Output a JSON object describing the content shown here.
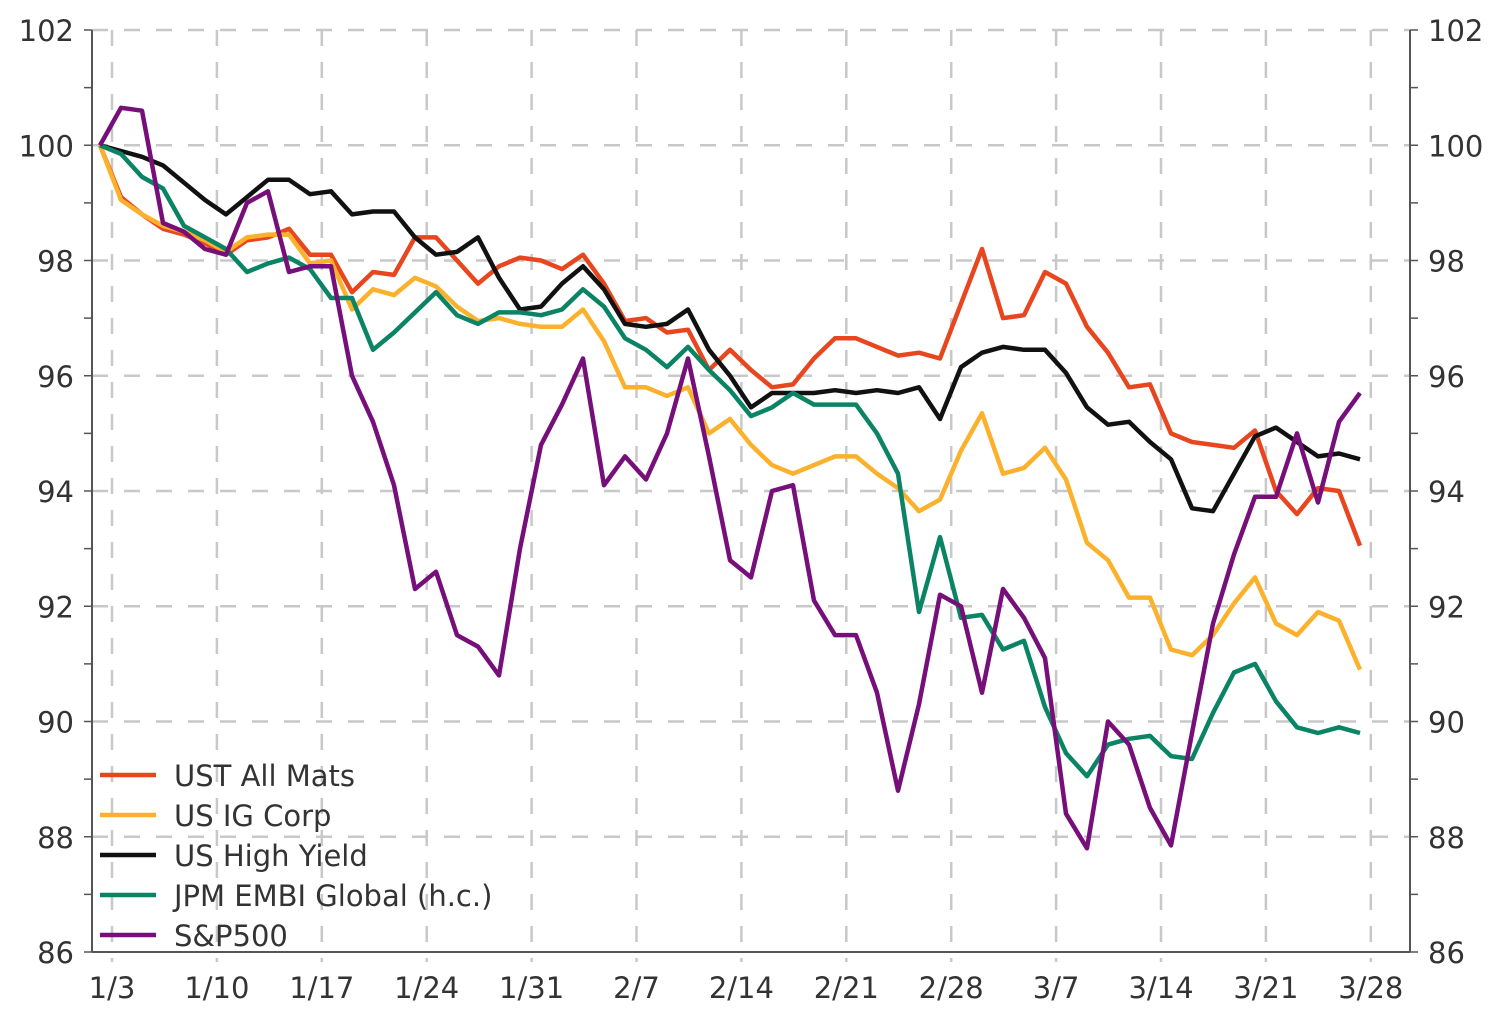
{
  "chart_data": {
    "type": "line",
    "title": "",
    "xlabel": "",
    "ylabel": "",
    "ylim": [
      86,
      102
    ],
    "yticks": [
      86,
      88,
      90,
      92,
      94,
      96,
      98,
      100,
      102
    ],
    "x_tick_labels": [
      "1/3",
      "1/10",
      "1/17",
      "1/24",
      "1/31",
      "2/7",
      "2/14",
      "2/21",
      "2/28",
      "3/7",
      "3/14",
      "3/21",
      "3/28"
    ],
    "grid": true,
    "legend_position": "bottom-left",
    "series": [
      {
        "name": "UST All Mats",
        "color": "#e8461e",
        "values": [
          100,
          99.1,
          98.8,
          98.55,
          98.45,
          98.3,
          98.1,
          98.35,
          98.4,
          98.55,
          98.1,
          98.1,
          97.45,
          97.8,
          97.75,
          98.4,
          98.4,
          98.0,
          97.6,
          97.9,
          98.05,
          98.0,
          97.85,
          98.1,
          97.6,
          96.95,
          97.0,
          96.75,
          96.8,
          96.1,
          96.45,
          96.1,
          95.8,
          95.85,
          96.3,
          96.65,
          96.65,
          96.5,
          96.35,
          96.4,
          96.3,
          97.25,
          98.2,
          97.0,
          97.05,
          97.8,
          97.6,
          96.85,
          96.4,
          95.8,
          95.85,
          95.0,
          94.85,
          94.8,
          94.75,
          95.05,
          94.0,
          93.6,
          94.05,
          94.0,
          93.05
        ]
      },
      {
        "name": "US IG Corp",
        "color": "#fbb12b",
        "values": [
          100,
          99.05,
          98.8,
          98.6,
          98.5,
          98.35,
          98.15,
          98.4,
          98.45,
          98.45,
          97.95,
          98.0,
          97.15,
          97.5,
          97.4,
          97.7,
          97.55,
          97.2,
          96.95,
          97.0,
          96.9,
          96.85,
          96.85,
          97.15,
          96.6,
          95.8,
          95.8,
          95.65,
          95.8,
          95.0,
          95.25,
          94.8,
          94.45,
          94.3,
          94.45,
          94.6,
          94.6,
          94.3,
          94.05,
          93.65,
          93.85,
          94.7,
          95.35,
          94.3,
          94.4,
          94.75,
          94.2,
          93.1,
          92.8,
          92.15,
          92.15,
          91.25,
          91.15,
          91.5,
          92.05,
          92.5,
          91.7,
          91.5,
          91.9,
          91.75,
          90.9
        ]
      },
      {
        "name": "US High Yield",
        "color": "#111111",
        "values": [
          100,
          99.9,
          99.8,
          99.65,
          99.35,
          99.05,
          98.8,
          99.1,
          99.4,
          99.4,
          99.15,
          99.2,
          98.8,
          98.85,
          98.85,
          98.4,
          98.1,
          98.15,
          98.4,
          97.7,
          97.15,
          97.2,
          97.6,
          97.9,
          97.5,
          96.9,
          96.85,
          96.9,
          97.15,
          96.45,
          96.0,
          95.45,
          95.7,
          95.7,
          95.7,
          95.75,
          95.7,
          95.75,
          95.7,
          95.8,
          95.25,
          96.15,
          96.4,
          96.5,
          96.45,
          96.45,
          96.05,
          95.45,
          95.15,
          95.2,
          94.85,
          94.55,
          93.7,
          93.65,
          94.3,
          94.95,
          95.1,
          94.85,
          94.6,
          94.65,
          94.55
        ]
      },
      {
        "name": "JPM EMBI Global (h.c.)",
        "color": "#0a8464",
        "values": [
          100,
          99.85,
          99.45,
          99.25,
          98.6,
          98.4,
          98.2,
          97.8,
          97.95,
          98.05,
          97.85,
          97.35,
          97.35,
          96.45,
          96.75,
          97.1,
          97.45,
          97.05,
          96.9,
          97.1,
          97.1,
          97.05,
          97.15,
          97.5,
          97.2,
          96.65,
          96.45,
          96.15,
          96.5,
          96.1,
          95.75,
          95.3,
          95.45,
          95.7,
          95.5,
          95.5,
          95.5,
          95.0,
          94.3,
          91.9,
          93.2,
          91.8,
          91.85,
          91.25,
          91.4,
          90.25,
          89.45,
          89.05,
          89.6,
          89.7,
          89.75,
          89.4,
          89.35,
          90.15,
          90.85,
          91.0,
          90.35,
          89.9,
          89.8,
          89.9,
          89.8
        ]
      },
      {
        "name": "S&P500",
        "color": "#760f7a",
        "values": [
          100,
          100.65,
          100.6,
          98.65,
          98.5,
          98.2,
          98.1,
          99.0,
          99.2,
          97.8,
          97.9,
          97.9,
          96.0,
          95.2,
          94.1,
          92.3,
          92.6,
          91.5,
          91.3,
          90.8,
          93.0,
          94.8,
          95.5,
          96.3,
          94.1,
          94.6,
          94.2,
          95.0,
          96.3,
          94.6,
          92.8,
          92.5,
          94.0,
          94.1,
          92.1,
          91.5,
          91.5,
          90.5,
          88.8,
          90.3,
          92.2,
          92.0,
          90.5,
          92.3,
          91.8,
          91.1,
          88.4,
          87.8,
          90.0,
          89.6,
          88.5,
          87.85,
          89.8,
          91.7,
          92.9,
          93.9,
          93.9,
          95.0,
          93.8,
          95.2,
          95.7
        ]
      }
    ]
  }
}
